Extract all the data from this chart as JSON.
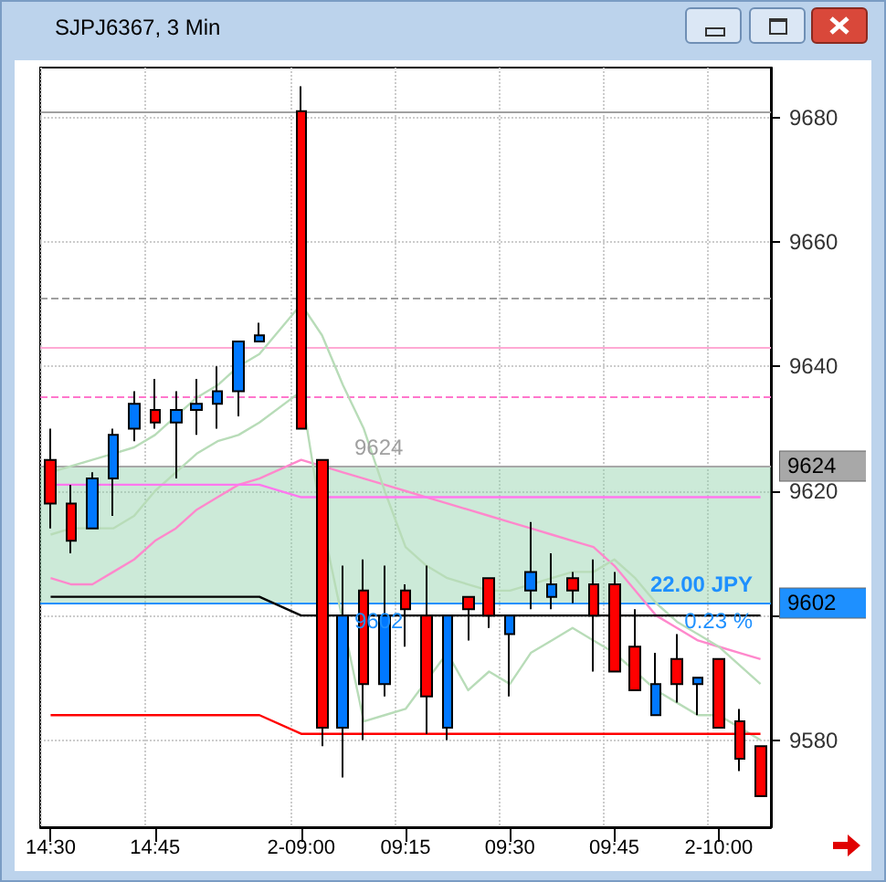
{
  "chart_data": {
    "type": "candlestick",
    "title": "SJPJ6367, 3 Min",
    "categories": [
      "14:30",
      null,
      null,
      null,
      null,
      "14:45",
      null,
      null,
      null,
      null,
      null,
      null,
      "2-09:00",
      null,
      null,
      null,
      null,
      "09:15",
      null,
      null,
      null,
      null,
      "09:30",
      null,
      null,
      null,
      null,
      "09:45",
      null,
      null,
      null,
      null,
      "2-10:00",
      null,
      null
    ],
    "ohlc": [
      [
        9625,
        9630,
        9614,
        9618
      ],
      [
        9618,
        9621,
        9610,
        9612
      ],
      [
        9614,
        9623,
        9614,
        9622
      ],
      [
        9622,
        9630,
        9616,
        9629
      ],
      [
        9630,
        9636,
        9628,
        9634
      ],
      [
        9633,
        9638,
        9630,
        9631
      ],
      [
        9631,
        9636,
        9622,
        9633
      ],
      [
        9633,
        9638,
        9629,
        9634
      ],
      [
        9634,
        9640,
        9630,
        9636
      ],
      [
        9636,
        9644,
        9632,
        9644
      ],
      [
        9644,
        9647,
        9644,
        9645
      ],
      null,
      [
        9681,
        9685,
        9630,
        9630
      ],
      [
        9625,
        9625,
        9579,
        9582
      ],
      [
        9582,
        9608,
        9574,
        9600
      ],
      [
        9604,
        9609,
        9580,
        9589
      ],
      [
        9589,
        9608,
        9587,
        9600
      ],
      [
        9604,
        9605,
        9595,
        9601
      ],
      [
        9600,
        9608,
        9581,
        9587
      ],
      [
        9582,
        9600,
        9580,
        9600
      ],
      [
        9603,
        9603,
        9596,
        9601
      ],
      [
        9606,
        9606,
        9598,
        9600
      ],
      [
        9597,
        9600,
        9587,
        9600
      ],
      [
        9604,
        9615,
        9601,
        9607
      ],
      [
        9603,
        9610,
        9601,
        9605
      ],
      [
        9606,
        9607,
        9602,
        9604
      ],
      [
        9605,
        9609,
        9591,
        9600
      ],
      [
        9605,
        9607,
        9591,
        9591
      ],
      [
        9595,
        9601,
        9588,
        9588
      ],
      [
        9584,
        9594,
        9584,
        9589
      ],
      [
        9593,
        9597,
        9586,
        9589
      ],
      [
        9589,
        9590,
        9584,
        9590
      ],
      [
        9593,
        9593,
        9582,
        9582
      ],
      [
        9583,
        9585,
        9575,
        9577
      ],
      [
        9579,
        9579,
        9571,
        9571
      ]
    ],
    "colors": [
      "#ff0000",
      "#ff0000",
      "#0078ff",
      "#0078ff",
      "#0078ff",
      "#ff0000",
      "#0078ff",
      "#0078ff",
      "#0078ff",
      "#0078ff",
      "#0078ff",
      null,
      "#ff0000",
      "#ff0000",
      "#0078ff",
      "#ff0000",
      "#0078ff",
      "#ff0000",
      "#ff0000",
      "#0078ff",
      "#ff0000",
      "#ff0000",
      "#0078ff",
      "#0078ff",
      "#0078ff",
      "#ff0000",
      "#ff0000",
      "#ff0000",
      "#ff0000",
      "#0078ff",
      "#ff0000",
      "#0078ff",
      "#ff0000",
      "#ff0000",
      "#ff0000"
    ],
    "series": [
      {
        "type": "line",
        "color": "#ff88cc",
        "values": [
          9606,
          9605,
          9605,
          9607,
          9609,
          9612,
          9614,
          9617,
          9619,
          9621,
          9622,
          null,
          9625,
          9624,
          9623,
          9622,
          9621,
          9620,
          9619,
          9618,
          9617,
          9616,
          9615,
          9614,
          9613,
          9612,
          9611,
          9608,
          9604,
          9600,
          9598,
          9596,
          9595,
          9594,
          9593
        ]
      },
      {
        "type": "line",
        "color": "#b8dcb8",
        "values": [
          9623,
          9624,
          9625,
          9626,
          9627,
          9629,
          9632,
          9635,
          9637,
          9640,
          9642,
          null,
          9650,
          9645,
          9637,
          9630,
          9620,
          9611,
          9608,
          9606,
          9605,
          9604,
          9604,
          9605,
          9606,
          9607,
          9607,
          9609,
          9606,
          9602,
          9599,
          9597,
          9595,
          9592,
          9589
        ]
      },
      {
        "type": "line",
        "color": "#b8dcb8",
        "values": [
          9613,
          9614,
          9614,
          9614,
          9616,
          9620,
          9623,
          9626,
          9628,
          9629,
          9631,
          null,
          9636,
          9615,
          null,
          9583,
          9584,
          9585,
          null,
          9594,
          9588,
          9591,
          9589,
          9594,
          9596,
          9598,
          9596,
          9594,
          9591,
          9588,
          9586,
          9584,
          9584,
          9582,
          9580
        ]
      },
      {
        "type": "line",
        "color": "#ff77ee",
        "values": [
          9621,
          9621,
          9621,
          9621,
          9621,
          9621,
          9621,
          9621,
          9621,
          9621,
          9621,
          null,
          9619,
          9619,
          9619,
          9619,
          9619,
          9619,
          9619,
          9619,
          9619,
          9619,
          9619,
          9619,
          9619,
          9619,
          9619,
          9619,
          9619,
          9619,
          9619,
          9619,
          9619,
          9619,
          9619
        ]
      },
      {
        "type": "line",
        "color": "#000000",
        "values": [
          9603,
          9603,
          9603,
          9603,
          9603,
          9603,
          9603,
          9603,
          9603,
          9603,
          9603,
          null,
          9600,
          9600,
          9600,
          9600,
          9600,
          9600,
          9600,
          9600,
          9600,
          9600,
          9600,
          9600,
          9600,
          9600,
          9600,
          9600,
          9600,
          9600,
          9600,
          9600,
          9600,
          9600,
          9600
        ]
      },
      {
        "type": "line",
        "color": "#ff0000",
        "values": [
          9584,
          9584,
          9584,
          9584,
          9584,
          9584,
          9584,
          9584,
          9584,
          9584,
          9584,
          null,
          9581,
          9581,
          9581,
          9581,
          9581,
          9581,
          9581,
          9581,
          9581,
          9581,
          9581,
          9581,
          9581,
          9581,
          9581,
          9581,
          9581,
          9581,
          9581,
          9581,
          9581,
          9581,
          9581
        ]
      }
    ],
    "ylim": [
      9566,
      9688
    ],
    "yticks": [
      9580,
      {
        "value": 9600,
        "label": null
      },
      9620,
      9640,
      9660,
      9680
    ],
    "grid": true,
    "marker": "none",
    "ref_lines": [
      {
        "axis": "y",
        "value": 9681,
        "color": "#a0a0a0"
      },
      {
        "axis": "y",
        "value": 9651,
        "color": "#a0a0a0",
        "line_style": "dashed"
      },
      {
        "axis": "y",
        "value": 9643,
        "color": "#ffaad4"
      },
      {
        "axis": "y",
        "value": 9635,
        "color": "#ff77cc",
        "line_style": "dashed"
      },
      {
        "axis": "y",
        "value": 9624,
        "color": "#a8a8a8",
        "label": "9624"
      },
      {
        "axis": "y",
        "value": 9602,
        "color": "#1e90ff",
        "label": "9602"
      }
    ],
    "bands": [
      {
        "axis": "y",
        "from": 9602,
        "to": 9624,
        "color": "#8fd1a8"
      }
    ],
    "annotations": [
      {
        "text": "9624",
        "y": 9624
      },
      {
        "text": "9602",
        "y": 9602
      },
      {
        "text": "22.00 JPY",
        "y": 9602
      },
      {
        "text": "0.23 %",
        "y": 9602
      }
    ]
  }
}
